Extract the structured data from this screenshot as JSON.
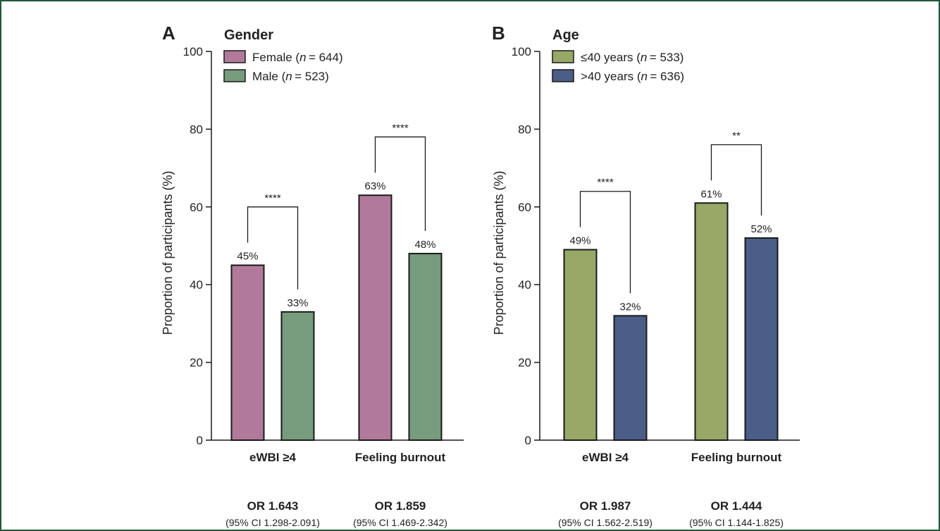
{
  "chart_data": [
    {
      "type": "bar",
      "panel": "A",
      "title": "Gender",
      "ylabel": "Proportion of participants (%)",
      "ylim": [
        0,
        100
      ],
      "yticks": [
        "0",
        "20",
        "40",
        "60",
        "80",
        "100"
      ],
      "categories": [
        "eWBI ≥4",
        "Feeling burnout"
      ],
      "series": [
        {
          "name": "Female",
          "n_label": "644",
          "color": "#b27a9a",
          "values": [
            45,
            63
          ],
          "labels": [
            "45%",
            "63%"
          ]
        },
        {
          "name": "Male",
          "n_label": "523",
          "color": "#779b7d",
          "values": [
            33,
            48
          ],
          "labels": [
            "33%",
            "48%"
          ]
        }
      ],
      "significance": [
        "****",
        "****"
      ],
      "odds_ratios": [
        {
          "or": "OR 1.643",
          "ci": "(95% CI 1.298-2.091)"
        },
        {
          "or": "OR 1.859",
          "ci": "(95% CI 1.469-2.342)"
        }
      ],
      "legend_position": "top-left",
      "grid": false
    },
    {
      "type": "bar",
      "panel": "B",
      "title": "Age",
      "ylabel": "Proportion of participants (%)",
      "ylim": [
        0,
        100
      ],
      "yticks": [
        "0",
        "20",
        "40",
        "60",
        "80",
        "100"
      ],
      "categories": [
        "eWBI ≥4",
        "Feeling burnout"
      ],
      "series": [
        {
          "name": "≤40 years",
          "n_label": "533",
          "color": "#97a867",
          "values": [
            49,
            61
          ],
          "labels": [
            "49%",
            "61%"
          ]
        },
        {
          "name": ">40 years",
          "n_label": "636",
          "color": "#4a5e88",
          "values": [
            32,
            52
          ],
          "labels": [
            "32%",
            "52%"
          ]
        }
      ],
      "significance": [
        "****",
        "**"
      ],
      "odds_ratios": [
        {
          "or": "OR 1.987",
          "ci": "(95% CI 1.562-2.519)"
        },
        {
          "or": "OR 1.444",
          "ci": "(95% CI 1.144-1.825)"
        }
      ],
      "legend_position": "top-left",
      "grid": false
    }
  ]
}
